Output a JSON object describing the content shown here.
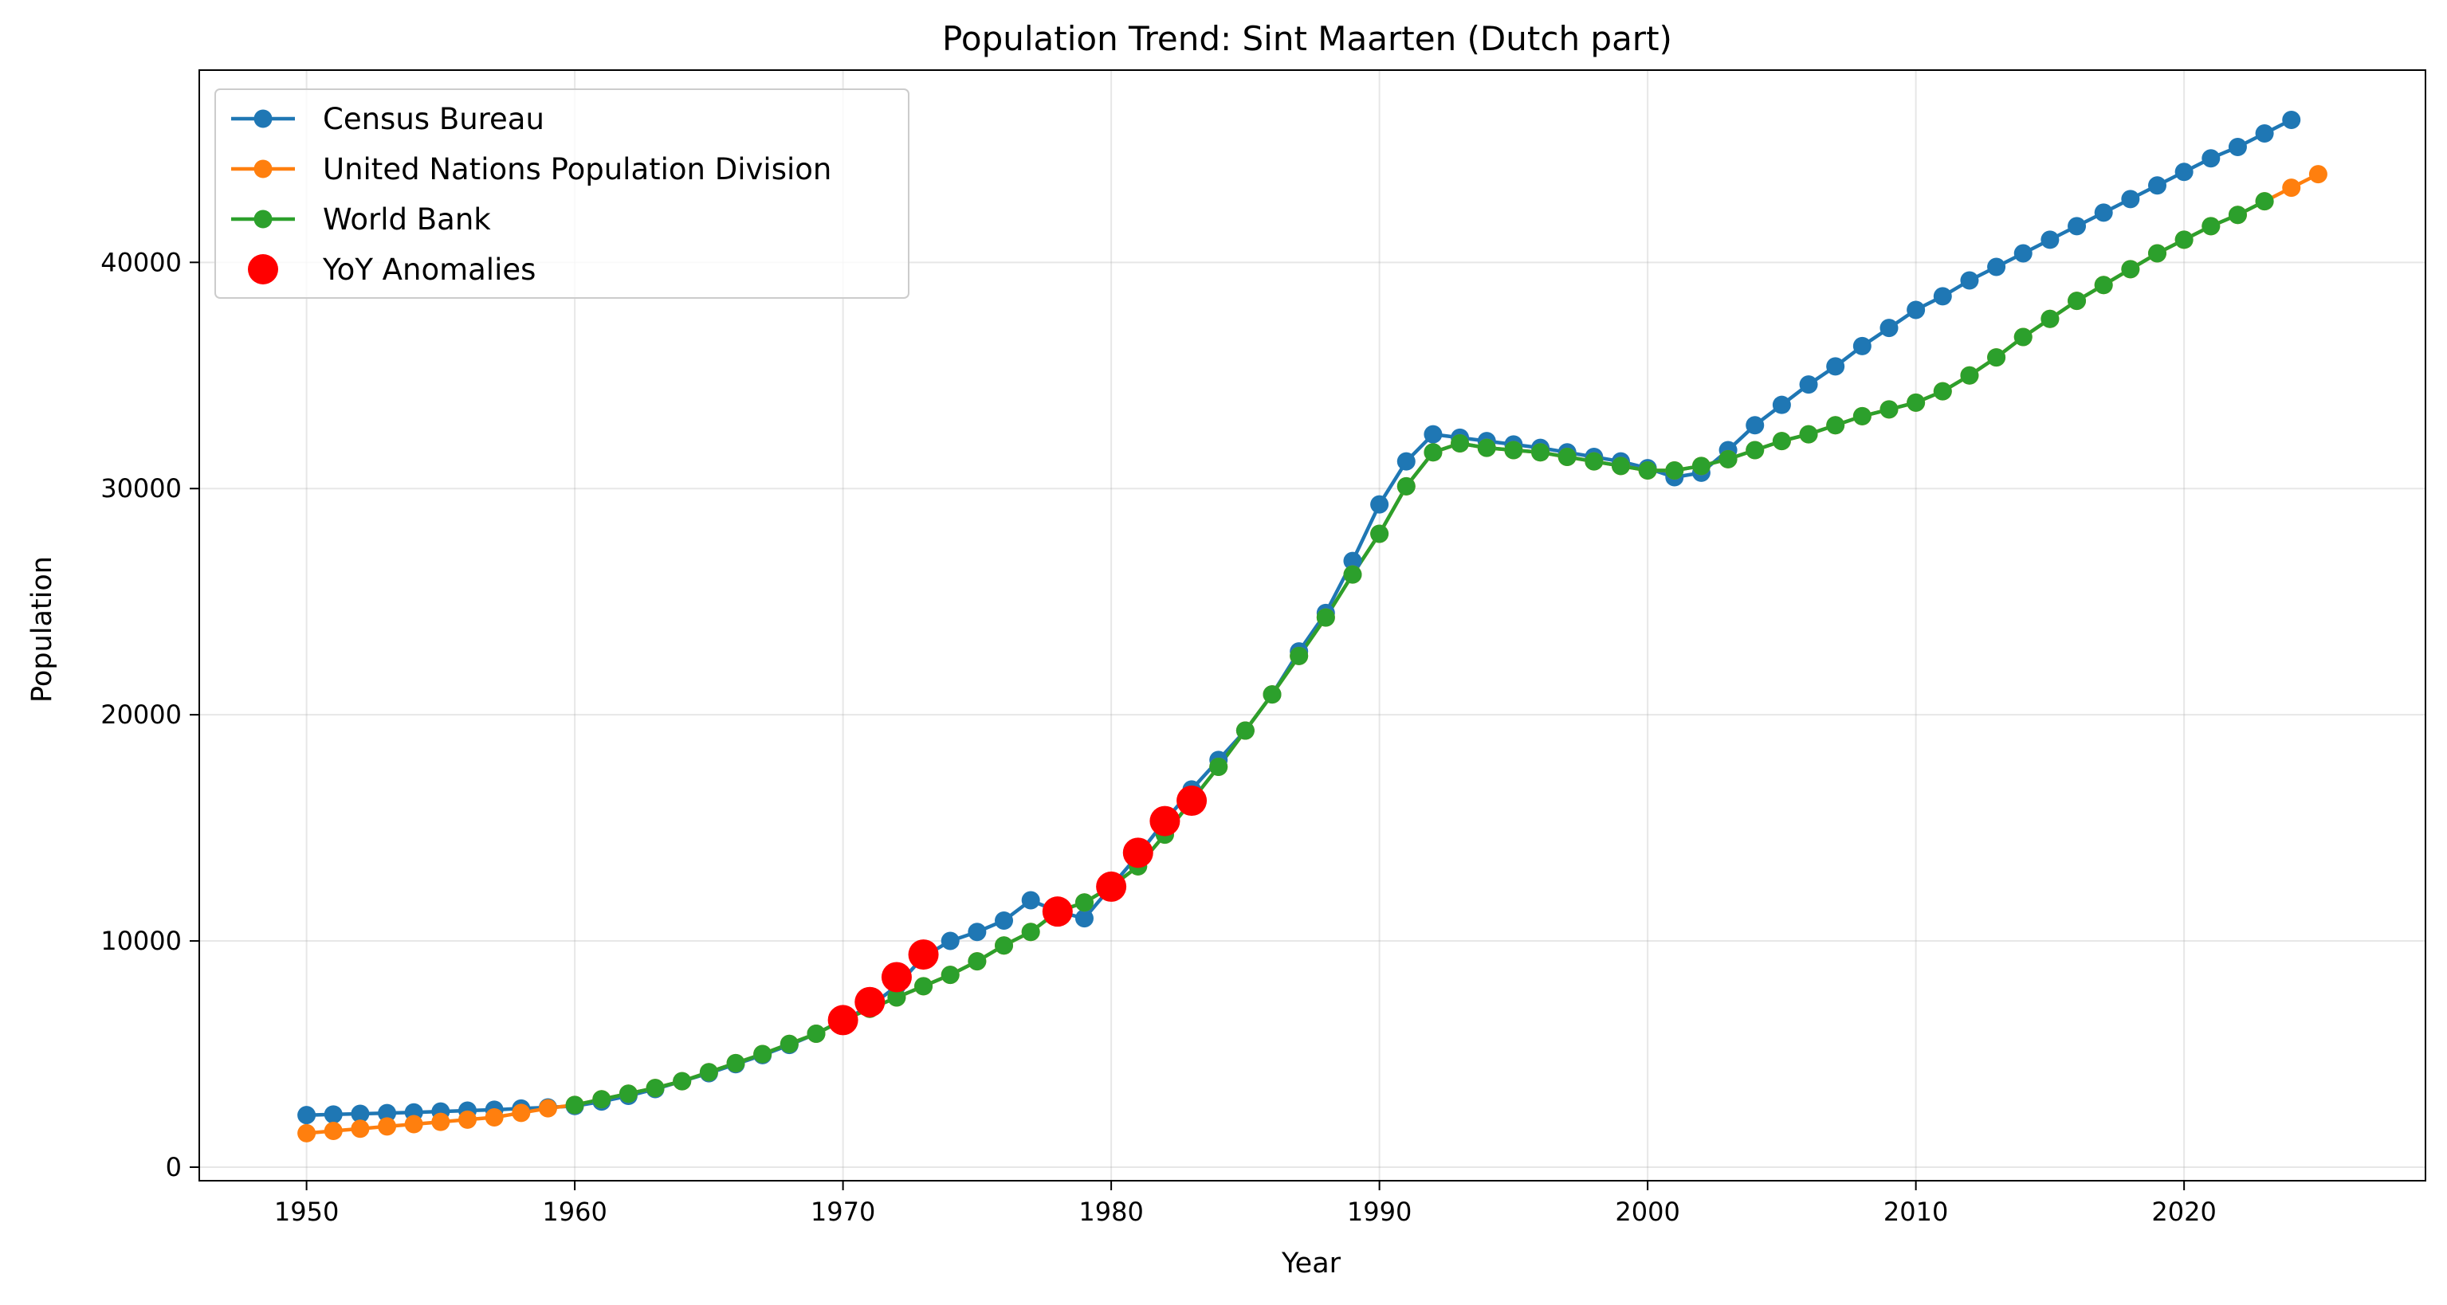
{
  "chart_data": {
    "type": "line",
    "title": "Population Trend: Sint Maarten (Dutch part)",
    "xlabel": "Year",
    "ylabel": "Population",
    "xlim": [
      1946,
      2029
    ],
    "ylim": [
      -600,
      48500
    ],
    "xticks": [
      1950,
      1960,
      1970,
      1980,
      1990,
      2000,
      2010,
      2020
    ],
    "yticks": [
      0,
      10000,
      20000,
      30000,
      40000
    ],
    "grid": true,
    "legend_position": "upper-left",
    "series": [
      {
        "name": "Census Bureau",
        "color": "#1f77b4",
        "x": [
          1950,
          1951,
          1952,
          1953,
          1954,
          1955,
          1956,
          1957,
          1958,
          1959,
          1960,
          1961,
          1962,
          1963,
          1964,
          1965,
          1966,
          1967,
          1968,
          1969,
          1970,
          1971,
          1972,
          1973,
          1974,
          1975,
          1976,
          1977,
          1978,
          1979,
          1980,
          1981,
          1982,
          1983,
          1984,
          1985,
          1986,
          1987,
          1988,
          1989,
          1990,
          1991,
          1992,
          1993,
          1994,
          1995,
          1996,
          1997,
          1998,
          1999,
          2000,
          2001,
          2002,
          2003,
          2004,
          2005,
          2006,
          2007,
          2008,
          2009,
          2010,
          2011,
          2012,
          2013,
          2014,
          2015,
          2016,
          2017,
          2018,
          2019,
          2020,
          2021,
          2022,
          2023,
          2024
        ],
        "y": [
          2300,
          2330,
          2360,
          2390,
          2420,
          2460,
          2500,
          2540,
          2590,
          2640,
          2700,
          2900,
          3150,
          3450,
          3800,
          4150,
          4550,
          4950,
          5400,
          5900,
          6500,
          7100,
          8000,
          9300,
          10000,
          10400,
          10900,
          11800,
          11300,
          11000,
          12400,
          13800,
          15300,
          16700,
          18000,
          19300,
          20900,
          22800,
          24500,
          26800,
          29300,
          31200,
          32400,
          32250,
          32100,
          31950,
          31800,
          31600,
          31400,
          31200,
          30900,
          30500,
          30700,
          31700,
          32800,
          33700,
          34600,
          35400,
          36300,
          37100,
          37900,
          38500,
          39200,
          39800,
          40400,
          41000,
          41600,
          42200,
          42800,
          43400,
          44000,
          44600,
          45100,
          45700,
          46300
        ]
      },
      {
        "name": "United Nations Population Division",
        "color": "#ff7f0e",
        "x": [
          1950,
          1951,
          1952,
          1953,
          1954,
          1955,
          1956,
          1957,
          1958,
          1959,
          1960,
          1961,
          1962,
          1963,
          1964,
          1965,
          1966,
          1967,
          1968,
          1969,
          1970,
          1971,
          1972,
          1973,
          1974,
          1975,
          1976,
          1977,
          1978,
          1979,
          1980,
          1981,
          1982,
          1983,
          1984,
          1985,
          1986,
          1987,
          1988,
          1989,
          1990,
          1991,
          1992,
          1993,
          1994,
          1995,
          1996,
          1997,
          1998,
          1999,
          2000,
          2001,
          2002,
          2003,
          2004,
          2005,
          2006,
          2007,
          2008,
          2009,
          2010,
          2011,
          2012,
          2013,
          2014,
          2015,
          2016,
          2017,
          2018,
          2019,
          2020,
          2021,
          2022,
          2023,
          2024,
          2025
        ],
        "y": [
          1500,
          1600,
          1700,
          1800,
          1900,
          2000,
          2100,
          2200,
          2400,
          2600,
          2750,
          3000,
          3250,
          3500,
          3800,
          4200,
          4600,
          5000,
          5450,
          5900,
          6500,
          7000,
          7500,
          8000,
          8500,
          9100,
          9800,
          10400,
          11300,
          11700,
          12400,
          13300,
          14700,
          16200,
          17700,
          19300,
          20900,
          22600,
          24300,
          26200,
          28000,
          30100,
          31600,
          32000,
          31800,
          31700,
          31600,
          31400,
          31200,
          31000,
          30800,
          30800,
          31000,
          31300,
          31700,
          32100,
          32400,
          32800,
          33200,
          33500,
          33800,
          34300,
          35000,
          35800,
          36700,
          37500,
          38300,
          39000,
          39700,
          40400,
          41000,
          41600,
          42100,
          42700,
          43300,
          43900
        ]
      },
      {
        "name": "World Bank",
        "color": "#2ca02c",
        "x": [
          1960,
          1961,
          1962,
          1963,
          1964,
          1965,
          1966,
          1967,
          1968,
          1969,
          1970,
          1971,
          1972,
          1973,
          1974,
          1975,
          1976,
          1977,
          1978,
          1979,
          1980,
          1981,
          1982,
          1983,
          1984,
          1985,
          1986,
          1987,
          1988,
          1989,
          1990,
          1991,
          1992,
          1993,
          1994,
          1995,
          1996,
          1997,
          1998,
          1999,
          2000,
          2001,
          2002,
          2003,
          2004,
          2005,
          2006,
          2007,
          2008,
          2009,
          2010,
          2011,
          2012,
          2013,
          2014,
          2015,
          2016,
          2017,
          2018,
          2019,
          2020,
          2021,
          2022,
          2023
        ],
        "y": [
          2750,
          3000,
          3250,
          3500,
          3800,
          4200,
          4600,
          5000,
          5450,
          5900,
          6500,
          7000,
          7500,
          8000,
          8500,
          9100,
          9800,
          10400,
          11300,
          11700,
          12400,
          13300,
          14700,
          16200,
          17700,
          19300,
          20900,
          22600,
          24300,
          26200,
          28000,
          30100,
          31600,
          32000,
          31800,
          31700,
          31600,
          31400,
          31200,
          31000,
          30800,
          30800,
          31000,
          31300,
          31700,
          32100,
          32400,
          32800,
          33200,
          33500,
          33800,
          34300,
          35000,
          35800,
          36700,
          37500,
          38300,
          39000,
          39700,
          40400,
          41000,
          41600,
          42100,
          42700
        ]
      },
      {
        "name": "YoY Anomalies",
        "color": "#ff0000",
        "x": [
          1970,
          1971,
          1972,
          1973,
          1978,
          1980,
          1981,
          1982,
          1983
        ],
        "y": [
          6500,
          7300,
          8400,
          9400,
          11300,
          12400,
          13900,
          15300,
          16200
        ]
      }
    ]
  }
}
